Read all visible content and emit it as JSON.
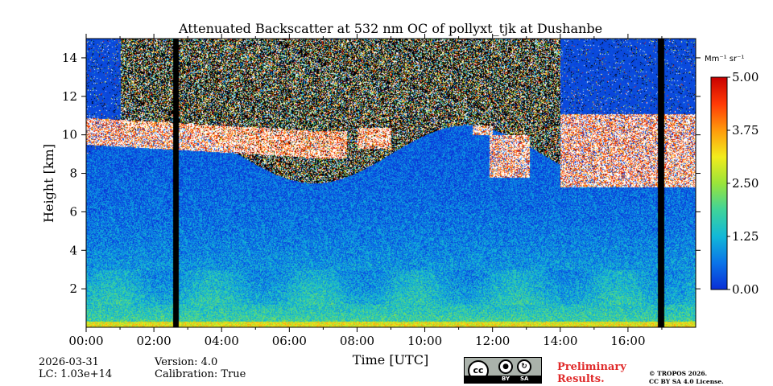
{
  "chart_data": {
    "type": "heatmap",
    "title": "Attenuated Backscatter at 532 nm OC of pollyxt_tjk at Dushanbe",
    "xlabel": "Time [UTC]",
    "ylabel": "Height [km]",
    "xlim_hours": [
      0,
      18
    ],
    "ylim_km": [
      0,
      15
    ],
    "x_ticks": [
      {
        "value": 0,
        "label": "00:00"
      },
      {
        "value": 2,
        "label": "02:00"
      },
      {
        "value": 4,
        "label": "04:00"
      },
      {
        "value": 6,
        "label": "06:00"
      },
      {
        "value": 8,
        "label": "08:00"
      },
      {
        "value": 10,
        "label": "10:00"
      },
      {
        "value": 12,
        "label": "12:00"
      },
      {
        "value": 14,
        "label": "14:00"
      },
      {
        "value": 16,
        "label": "16:00"
      }
    ],
    "y_ticks": [
      {
        "value": 2,
        "label": "2"
      },
      {
        "value": 4,
        "label": "4"
      },
      {
        "value": 6,
        "label": "6"
      },
      {
        "value": 8,
        "label": "8"
      },
      {
        "value": 10,
        "label": "10"
      },
      {
        "value": 12,
        "label": "12"
      },
      {
        "value": 14,
        "label": "14"
      }
    ],
    "colorbar": {
      "unit_label": "Mm⁻¹ sr⁻¹",
      "range": [
        0,
        5
      ],
      "ticks": [
        {
          "value": 0,
          "label": "0.00"
        },
        {
          "value": 1.25,
          "label": "1.25"
        },
        {
          "value": 2.5,
          "label": "2.50"
        },
        {
          "value": 3.75,
          "label": "3.75"
        },
        {
          "value": 5,
          "label": "5.00"
        }
      ],
      "colors": [
        "#0a2fd6",
        "#0a74e8",
        "#12b8d8",
        "#3fd49a",
        "#9ae43a",
        "#f2ec1c",
        "#ff9a0c",
        "#ff3a06",
        "#c80000"
      ]
    },
    "no_data_periods_hours": [
      [
        2.55,
        2.72
      ],
      [
        16.88,
        17.05
      ]
    ],
    "cloud_layers": [
      {
        "start_h": 0.0,
        "end_h": 6.5,
        "base_km": 9.5,
        "top_km": 10.9
      },
      {
        "start_h": 6.5,
        "end_h": 7.7,
        "base_km": 8.8,
        "top_km": 10.2
      },
      {
        "start_h": 8.0,
        "end_h": 9.0,
        "base_km": 9.3,
        "top_km": 10.4
      },
      {
        "start_h": 11.4,
        "end_h": 12.0,
        "base_km": 10.0,
        "top_km": 10.5
      },
      {
        "start_h": 11.9,
        "end_h": 13.1,
        "base_km": 7.8,
        "top_km": 10.0
      },
      {
        "start_h": 14.0,
        "end_h": 18.0,
        "base_km": 7.3,
        "top_km": 11.1
      }
    ]
  },
  "footer": {
    "date": "2026-03-31",
    "lc": "LC: 1.03e+14",
    "version": "Version: 4.0",
    "calibration": "Calibration: True",
    "preliminary_line1": "Preliminary",
    "preliminary_line2": "Results.",
    "copyright_line1": "© TROPOS 2026.",
    "copyright_line2": "CC BY SA 4.0 License.",
    "license_badge": {
      "cc": "cc",
      "by": "BY",
      "sa": "SA",
      "icon_by": "person-icon",
      "icon_sa": "share-alike-icon"
    }
  }
}
